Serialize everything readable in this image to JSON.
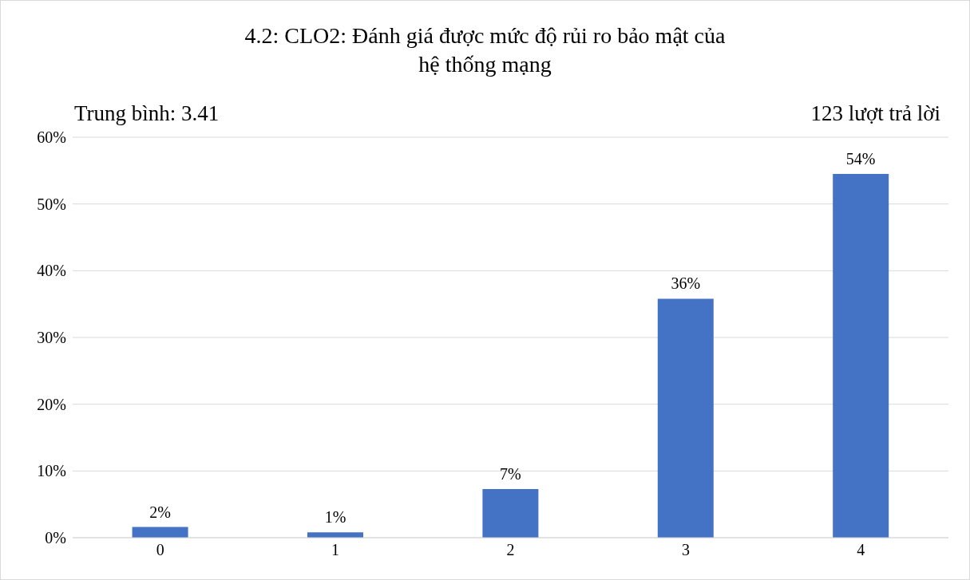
{
  "chart_data": {
    "type": "bar",
    "title": "4.2: CLO2: Đánh giá được mức độ rủi ro bảo mật của\nhệ thống mạng",
    "categories": [
      "0",
      "1",
      "2",
      "3",
      "4"
    ],
    "values": [
      1.6,
      0.8,
      7.3,
      35.8,
      54.5
    ],
    "value_labels": [
      "2%",
      "1%",
      "7%",
      "36%",
      "54%"
    ],
    "color": "#4472c4",
    "ylim": [
      0,
      60
    ],
    "yticks": [
      {
        "value": 0,
        "label": "0%"
      },
      {
        "value": 10,
        "label": "10%"
      },
      {
        "value": 20,
        "label": "20%"
      },
      {
        "value": 30,
        "label": "30%"
      },
      {
        "value": 40,
        "label": "40%"
      },
      {
        "value": 50,
        "label": "50%"
      },
      {
        "value": 60,
        "label": "60%"
      }
    ],
    "grid": "y",
    "annotations": [
      "Trung bình: 3.41",
      "123 lượt trả lời"
    ]
  }
}
